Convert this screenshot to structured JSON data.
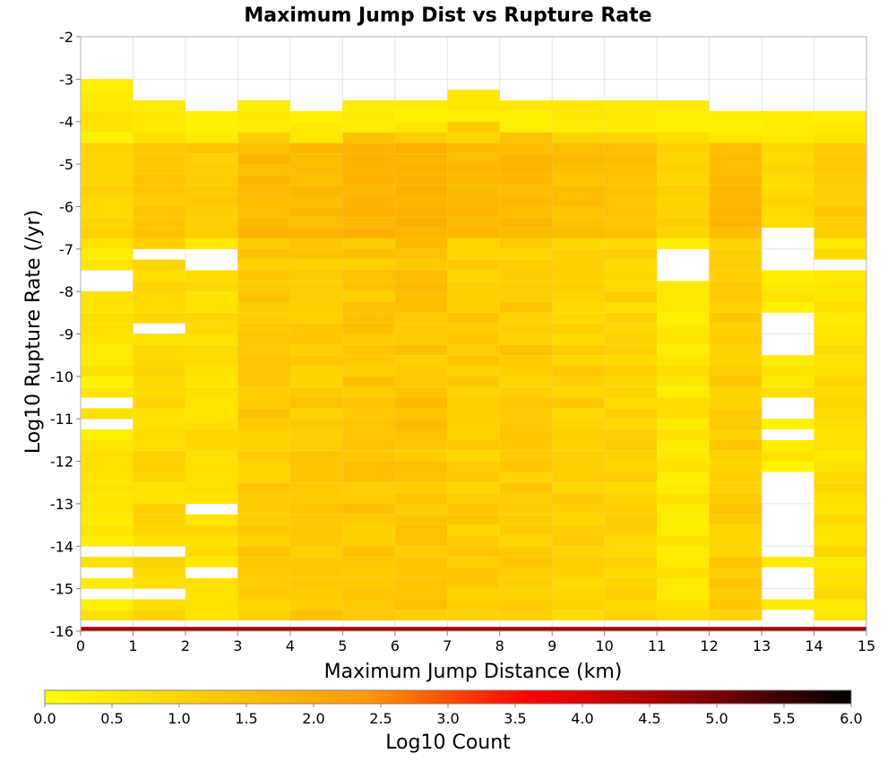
{
  "chart_data": {
    "type": "heatmap",
    "title": "Maximum Jump Dist vs Rupture Rate",
    "xlabel": "Maximum Jump Distance (km)",
    "ylabel": "Log10 Rupture Rate (/yr)",
    "xlim": [
      0,
      15
    ],
    "ylim": [
      -16,
      -2
    ],
    "x_ticks": [
      "0",
      "1",
      "2",
      "3",
      "4",
      "5",
      "6",
      "7",
      "8",
      "9",
      "10",
      "11",
      "12",
      "13",
      "14",
      "15"
    ],
    "y_ticks": [
      "-2",
      "-3",
      "-4",
      "-5",
      "-6",
      "-7",
      "-8",
      "-9",
      "-10",
      "-11",
      "-12",
      "-13",
      "-14",
      "-15",
      "-16"
    ],
    "x_bin_width": 1,
    "y_bin_height": 0.25,
    "y_bin_start": -16,
    "colorbar": {
      "label": "Log10 Count",
      "range": [
        0,
        6
      ],
      "ticks": [
        "0.0",
        "0.5",
        "1.0",
        "1.5",
        "2.0",
        "2.5",
        "3.0",
        "3.5",
        "4.0",
        "4.5",
        "5.0",
        "5.5",
        "6.0"
      ],
      "colors": [
        "#ffff00",
        "#ffcc00",
        "#ff9900",
        "#ff0000",
        "#8b0000",
        "#000000"
      ]
    },
    "grid": true,
    "columns": [
      {
        "x": 0,
        "ymax": -3.0,
        "gaps": [
          [
            -7.5,
            -8.0
          ],
          [
            -10.5,
            -10.75
          ],
          [
            -11.0,
            -11.25
          ],
          [
            -14.0,
            -14.25
          ],
          [
            -14.5,
            -14.75
          ],
          [
            -15.0,
            -15.25
          ]
        ],
        "base": 0.55
      },
      {
        "x": 1,
        "ymax": -3.5,
        "gaps": [
          [
            -7.25,
            -7.0
          ],
          [
            -8.75,
            -9.0
          ],
          [
            -14.0,
            -14.25
          ],
          [
            -15.0,
            -15.25
          ]
        ],
        "base": 0.85
      },
      {
        "x": 2,
        "ymax": -3.75,
        "gaps": [
          [
            -7.0,
            -7.5
          ],
          [
            -13.0,
            -13.25
          ],
          [
            -14.5,
            -14.75
          ]
        ],
        "base": 0.75
      },
      {
        "x": 3,
        "ymax": -3.5,
        "gaps": [],
        "base": 1.2
      },
      {
        "x": 4,
        "ymax": -3.75,
        "gaps": [],
        "base": 1.2
      },
      {
        "x": 5,
        "ymax": -3.5,
        "gaps": [],
        "base": 1.3
      },
      {
        "x": 6,
        "ymax": -3.5,
        "gaps": [],
        "base": 1.35
      },
      {
        "x": 7,
        "ymax": -3.25,
        "gaps": [],
        "base": 1.15
      },
      {
        "x": 8,
        "ymax": -3.5,
        "gaps": [],
        "base": 1.2
      },
      {
        "x": 9,
        "ymax": -3.5,
        "gaps": [],
        "base": 1.05
      },
      {
        "x": 10,
        "ymax": -3.5,
        "gaps": [],
        "base": 1.0
      },
      {
        "x": 11,
        "ymax": -3.5,
        "gaps": [
          [
            -7.0,
            -7.75
          ]
        ],
        "base": 0.6
      },
      {
        "x": 12,
        "ymax": -3.75,
        "gaps": [],
        "base": 1.2
      },
      {
        "x": 13,
        "ymax": -3.75,
        "gaps": [
          [
            -6.5,
            -7.5
          ],
          [
            -8.5,
            -9.5
          ],
          [
            -10.5,
            -11.0
          ],
          [
            -11.25,
            -11.5
          ],
          [
            -12.25,
            -14.25
          ],
          [
            -14.5,
            -15.25
          ],
          [
            -15.5,
            -15.75
          ]
        ],
        "base": 0.5
      },
      {
        "x": 14,
        "ymax": -3.75,
        "gaps": [
          [
            -7.25,
            -7.5
          ]
        ],
        "base": 0.75
      }
    ],
    "bottom_row": {
      "y": -16,
      "log10_count": 4.5
    }
  }
}
